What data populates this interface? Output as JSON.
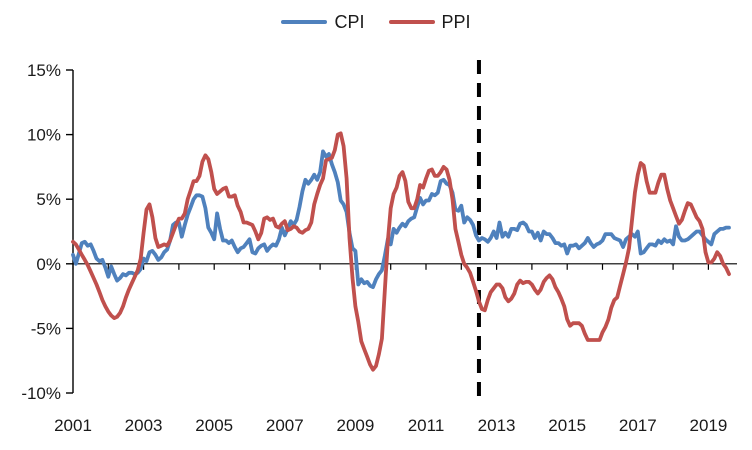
{
  "chart_data": {
    "type": "line",
    "title": "",
    "x_unit": "monthly",
    "x_start": "2001-01",
    "x_end": "2019-08",
    "ylim": [
      -10,
      15
    ],
    "grid": false,
    "legend_position": "top-center",
    "y_ticks": [
      {
        "value": 15,
        "label": "15%"
      },
      {
        "value": 10,
        "label": "10%"
      },
      {
        "value": 5,
        "label": "5%"
      },
      {
        "value": 0,
        "label": "0%"
      },
      {
        "value": -5,
        "label": "-5%"
      },
      {
        "value": -10,
        "label": "-10%"
      }
    ],
    "x_tick_years": [
      2001,
      2002,
      2003,
      2004,
      2005,
      2006,
      2007,
      2008,
      2009,
      2010,
      2011,
      2012,
      2013,
      2014,
      2015,
      2016,
      2017,
      2018,
      2019
    ],
    "x_labels": [
      {
        "year": 2001,
        "label": "2001"
      },
      {
        "year": 2003,
        "label": "2003"
      },
      {
        "year": 2005,
        "label": "2005"
      },
      {
        "year": 2007,
        "label": "2007"
      },
      {
        "year": 2009,
        "label": "2009"
      },
      {
        "year": 2011,
        "label": "2011"
      },
      {
        "year": 2013,
        "label": "2013"
      },
      {
        "year": 2015,
        "label": "2015"
      },
      {
        "year": 2017,
        "label": "2017"
      },
      {
        "year": 2019,
        "label": "2019"
      }
    ],
    "vline": {
      "position_year": 2012.5,
      "style": "dashed",
      "color": "#000000"
    },
    "series": [
      {
        "name": "CPI",
        "color": "#4F81BD",
        "values": [
          0.7,
          0,
          0.8,
          1.6,
          1.7,
          1.4,
          1.5,
          1,
          0.4,
          0.2,
          0.3,
          -0.3,
          -1,
          -0.2,
          -0.8,
          -1.3,
          -1.1,
          -0.8,
          -0.9,
          -0.7,
          -0.7,
          -0.8,
          -0.7,
          -0.4,
          0.4,
          0.2,
          0.9,
          1,
          0.7,
          0.3,
          0.5,
          0.9,
          1.1,
          1.8,
          3,
          3.2,
          3.2,
          2.1,
          3,
          3.8,
          4.4,
          5,
          5.3,
          5.3,
          5.2,
          4.3,
          2.8,
          2.4,
          1.9,
          3.9,
          2.7,
          1.8,
          1.8,
          1.6,
          1.8,
          1.3,
          0.9,
          1.2,
          1.3,
          1.6,
          1.9,
          0.9,
          0.8,
          1.2,
          1.4,
          1.5,
          1,
          1.3,
          1.5,
          1.4,
          1.9,
          2.8,
          2.2,
          2.7,
          3.3,
          3,
          3.4,
          4.4,
          5.6,
          6.5,
          6.2,
          6.5,
          6.9,
          6.5,
          7.1,
          8.7,
          8.3,
          8.5,
          7.7,
          7.1,
          6.3,
          4.9,
          4.6,
          4,
          2.4,
          1.2,
          1,
          -1.6,
          -1.2,
          -1.5,
          -1.4,
          -1.7,
          -1.8,
          -1.2,
          -0.8,
          -0.5,
          0.6,
          1.9,
          1.5,
          2.7,
          2.4,
          2.8,
          3.1,
          2.9,
          3.3,
          3.5,
          3.6,
          4.4,
          5.1,
          4.6,
          4.9,
          4.9,
          5.4,
          5.3,
          5.5,
          6.4,
          6.5,
          6.2,
          6.1,
          5.5,
          4.2,
          4.1,
          4.5,
          3.2,
          3.6,
          3.4,
          3,
          2.2,
          1.8,
          2,
          1.9,
          1.7,
          2,
          2.5,
          2,
          3.2,
          2.1,
          2.4,
          2.1,
          2.7,
          2.7,
          2.6,
          3.1,
          3.2,
          3,
          2.5,
          2.5,
          2,
          2.4,
          1.8,
          2.5,
          2.3,
          2.3,
          2,
          1.6,
          1.6,
          1.4,
          1.5,
          0.8,
          1.4,
          1.4,
          1.5,
          1.2,
          1.4,
          1.6,
          2,
          1.6,
          1.3,
          1.5,
          1.6,
          1.8,
          2.3,
          2.3,
          2.3,
          2,
          1.9,
          1.8,
          1.3,
          1.9,
          2.1,
          2.3,
          2.1,
          2.5,
          0.8,
          0.9,
          1.2,
          1.5,
          1.5,
          1.4,
          1.8,
          1.6,
          1.9,
          1.7,
          1.8,
          1.5,
          2.9,
          2.1,
          1.8,
          1.8,
          1.9,
          2.1,
          2.3,
          2.5,
          2.5,
          2.2,
          1.9,
          1.7,
          1.5,
          2.3,
          2.5,
          2.7,
          2.7,
          2.8,
          2.8
        ]
      },
      {
        "name": "PPI",
        "color": "#C0504D",
        "values": [
          1.7,
          1.5,
          1.1,
          0.7,
          0.3,
          -0.1,
          -0.6,
          -1.1,
          -1.6,
          -2.2,
          -2.8,
          -3.3,
          -3.7,
          -4,
          -4.2,
          -4.1,
          -3.8,
          -3.3,
          -2.6,
          -2,
          -1.5,
          -1,
          -0.5,
          0.4,
          2.4,
          4.2,
          4.6,
          3.6,
          2,
          1.3,
          1.4,
          1.5,
          1.4,
          1.8,
          2.4,
          3,
          3.5,
          3.5,
          3.9,
          5,
          5.7,
          6.4,
          6.4,
          6.8,
          7.9,
          8.4,
          8.1,
          7.1,
          5.8,
          5.4,
          5.6,
          5.8,
          5.9,
          5.2,
          5.2,
          5.3,
          4.5,
          4,
          3.2,
          3.2,
          3.1,
          3,
          2.5,
          1.9,
          2.4,
          3.5,
          3.6,
          3.4,
          3.5,
          2.9,
          2.8,
          3.1,
          3.3,
          2.6,
          2.7,
          2.9,
          2.8,
          2.5,
          2.4,
          2.6,
          2.7,
          3.2,
          4.6,
          5.4,
          6.1,
          6.6,
          8,
          8.1,
          8.2,
          8.8,
          10,
          10.1,
          9.1,
          6.6,
          2,
          -1.1,
          -3.3,
          -4.5,
          -6,
          -6.6,
          -7.2,
          -7.8,
          -8.2,
          -7.9,
          -7,
          -5.8,
          -2.1,
          1.7,
          4.3,
          5.4,
          5.9,
          6.8,
          7.1,
          6.4,
          4.8,
          4.3,
          4.3,
          5,
          6.1,
          5.9,
          6.6,
          7.2,
          7.3,
          6.8,
          6.8,
          7.1,
          7.5,
          7.3,
          6.5,
          5,
          2.7,
          1.7,
          0.7,
          0,
          -0.3,
          -0.7,
          -1.4,
          -2.1,
          -2.9,
          -3.5,
          -3.6,
          -2.8,
          -2.2,
          -1.9,
          -1.6,
          -1.6,
          -1.9,
          -2.6,
          -2.9,
          -2.7,
          -2.3,
          -1.6,
          -1.3,
          -1.5,
          -1.4,
          -1.4,
          -1.6,
          -2,
          -2.3,
          -2,
          -1.4,
          -1.1,
          -0.9,
          -1.2,
          -1.8,
          -2.2,
          -2.7,
          -3.3,
          -4.3,
          -4.8,
          -4.6,
          -4.6,
          -4.6,
          -4.8,
          -5.4,
          -5.9,
          -5.9,
          -5.9,
          -5.9,
          -5.9,
          -5.3,
          -4.9,
          -4.3,
          -3.4,
          -2.8,
          -2.6,
          -1.7,
          -0.8,
          0.1,
          1.2,
          3.3,
          5.5,
          6.9,
          7.8,
          7.6,
          6.4,
          5.5,
          5.5,
          5.5,
          6.3,
          6.9,
          6.9,
          5.8,
          4.9,
          4.3,
          3.7,
          3.1,
          3.4,
          4.1,
          4.7,
          4.6,
          4.1,
          3.6,
          3.3,
          2.7,
          0.9,
          0.1,
          0.1,
          0.4,
          0.9,
          0.6,
          0,
          -0.3,
          -0.8
        ]
      }
    ]
  }
}
